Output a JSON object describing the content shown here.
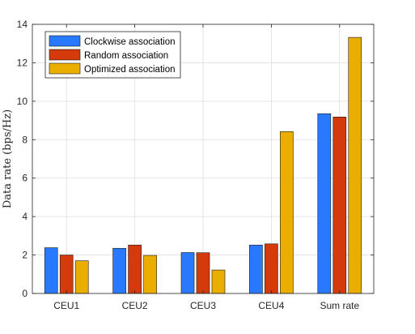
{
  "chart_data": {
    "type": "bar",
    "title": "",
    "xlabel": "",
    "ylabel": "Data rate (bps/Hz)",
    "ylim": [
      0,
      14
    ],
    "yticks": [
      0,
      2,
      4,
      6,
      8,
      10,
      12,
      14
    ],
    "grid": true,
    "legend_position": "top-left",
    "categories": [
      "CEU1",
      "CEU2",
      "CEU3",
      "CEU4",
      "Sum rate"
    ],
    "series": [
      {
        "name": "Clockwise association",
        "color": "#2979ff",
        "values": [
          2.38,
          2.35,
          2.13,
          2.52,
          9.35
        ]
      },
      {
        "name": "Random association",
        "color": "#d53a0c",
        "values": [
          2.0,
          2.52,
          2.12,
          2.58,
          9.18
        ]
      },
      {
        "name": "Optimized association",
        "color": "#eaae00",
        "values": [
          1.7,
          1.98,
          1.22,
          8.42,
          13.32
        ]
      }
    ]
  }
}
